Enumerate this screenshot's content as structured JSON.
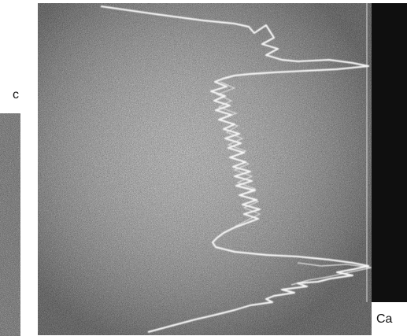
{
  "labels": {
    "left_panel": "c",
    "right_panel": "Ca"
  },
  "colors": {
    "background": "#ffffff",
    "micrograph_base": "#2b2b2b",
    "noise_light": "#9a9a9a",
    "trace": "#f2f2f2",
    "right_strip": "#0f0f0f"
  }
}
